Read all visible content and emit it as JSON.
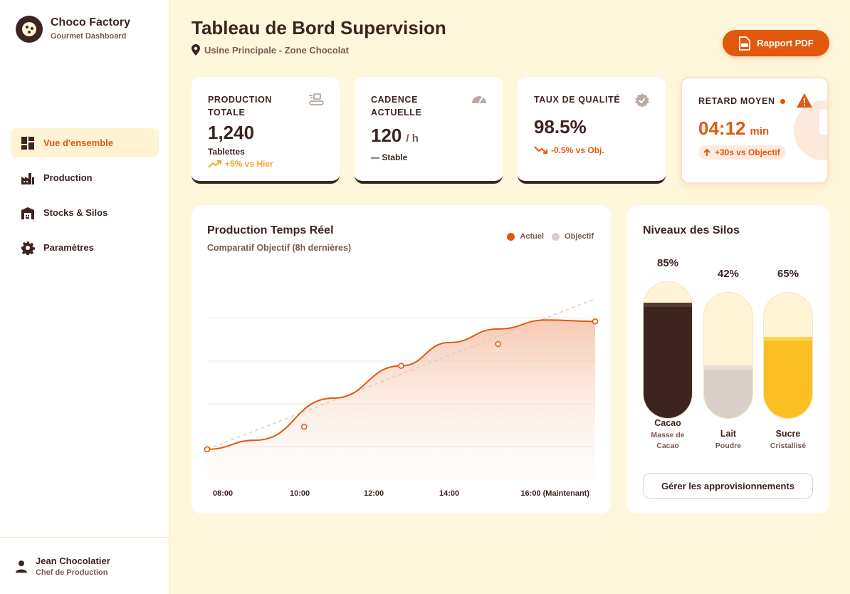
{
  "brand": {
    "title": "Choco Factory",
    "subtitle": "Gourmet Dashboard"
  },
  "nav": {
    "items": [
      {
        "label": "Vue d'ensemble",
        "icon": "dashboard-icon",
        "active": true
      },
      {
        "label": "Production",
        "icon": "factory-icon",
        "active": false
      },
      {
        "label": "Stocks & Silos",
        "icon": "warehouse-icon",
        "active": false
      },
      {
        "label": "Paramètres",
        "icon": "gear-icon",
        "active": false
      }
    ]
  },
  "user": {
    "name": "Jean Chocolatier",
    "role": "Chef de Production"
  },
  "header": {
    "title": "Tableau de Bord Supervision",
    "location": "Usine Principale - Zone Chocolat",
    "pdf_button": "Rapport PDF"
  },
  "kpis": {
    "production": {
      "label": "PRODUCTION TOTALE",
      "value": "1,240",
      "sub": "Tablettes",
      "trend": "+5% vs Hier",
      "icon": "conveyor-icon"
    },
    "cadence": {
      "label": "CADENCE ACTUELLE",
      "value": "120",
      "unit": "/ h",
      "trend": "— Stable",
      "icon": "speedometer-icon"
    },
    "quality": {
      "label": "TAUX DE QUALITÉ",
      "value": "98.5%",
      "trend": "-0.5% vs Obj.",
      "icon": "verified-badge-icon"
    },
    "delay": {
      "label": "RETARD MOYEN",
      "value": "04:12",
      "unit": "min",
      "trend": "+30s vs Objectif",
      "icon": "warning-icon"
    }
  },
  "chart_panel": {
    "title": "Production Temps Réel",
    "subtitle": "Comparatif Objectif (8h dernières)",
    "legend": {
      "actual": "Actuel",
      "target": "Objectif"
    }
  },
  "chart_data": {
    "type": "line",
    "x_labels": [
      "08:00",
      "10:00",
      "12:00",
      "14:00",
      "16:00 (Maintenant)"
    ],
    "series": [
      {
        "name": "Actuel",
        "x": [
          0,
          1,
          2,
          3,
          4
        ],
        "values": [
          0,
          30,
          111,
          140,
          170
        ],
        "color": "#e2580c",
        "style": "smooth-area"
      },
      {
        "name": "Objectif",
        "x": [
          0,
          4
        ],
        "values": [
          0,
          200
        ],
        "color": "#d9cfc8",
        "style": "dashed"
      }
    ],
    "ylim": [
      -40,
      230
    ],
    "grid": true,
    "legend_position": "top-right"
  },
  "silos": {
    "title": "Niveaux des Silos",
    "items": [
      {
        "percent": "85%",
        "level": 0.85,
        "name": "Cacao",
        "desc1": "Masse de",
        "desc2": "Cacao",
        "fill": "#3d2420",
        "cap": "#5a3a33",
        "bg": "#fff4d6"
      },
      {
        "percent": "42%",
        "level": 0.42,
        "name": "Lait",
        "desc1": "Poudre",
        "desc2": "",
        "fill": "#d9cfc8",
        "cap": "#e6ddd7",
        "bg": "#fff4d6"
      },
      {
        "percent": "65%",
        "level": 0.65,
        "name": "Sucre",
        "desc1": "Cristallisé",
        "desc2": "",
        "fill": "#fbbf24",
        "cap": "#fcd34d",
        "bg": "#fff4d6"
      }
    ],
    "manage_button": "Gérer les approvisionnements"
  },
  "colors": {
    "accent": "#e2580c",
    "brown": "#3d2420",
    "muted": "#7a5a50",
    "background": "#fff7dc",
    "positive": "#f5a623"
  }
}
